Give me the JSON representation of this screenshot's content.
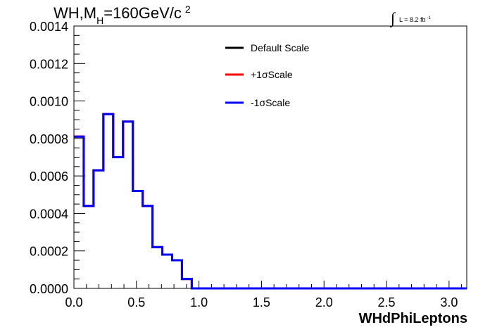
{
  "chart_data": {
    "type": "line",
    "title": {
      "prefix": "WH,M",
      "sub": "H",
      "suffix": "=160GeV/c",
      "sup": "2"
    },
    "lumi": {
      "integral": "∫",
      "text": "L = 8.2 fb",
      "sup": "-1"
    },
    "xlabel": "WHdPhiLeptons",
    "ylabel": "",
    "xlim": [
      0,
      3.1416
    ],
    "ylim": [
      0,
      0.0014
    ],
    "xticks": [
      0,
      0.5,
      1.0,
      1.5,
      2.0,
      2.5,
      3.0
    ],
    "xtick_labels": [
      "0.0",
      "0.5",
      "1.0",
      "1.5",
      "2.0",
      "2.5",
      "3.0"
    ],
    "yticks": [
      0,
      0.0002,
      0.0004,
      0.0006,
      0.0008,
      0.001,
      0.0012,
      0.0014
    ],
    "ytick_labels": [
      "0.0000",
      "0.0002",
      "0.0004",
      "0.0006",
      "0.0008",
      "0.0010",
      "0.0012",
      "0.0014"
    ],
    "bin_edges": [
      0,
      0.0785,
      0.157,
      0.2356,
      0.3142,
      0.3927,
      0.4712,
      0.5498,
      0.6283,
      0.7069,
      0.7854,
      0.8639,
      0.9425,
      1.021,
      1.0996,
      1.1781,
      1.2566,
      1.3352,
      1.4137,
      1.4923,
      1.5708,
      1.6493,
      1.7279,
      1.8064,
      1.885,
      1.9635,
      2.042,
      2.1206,
      2.1991,
      2.2777,
      2.3562,
      2.4347,
      2.5133,
      2.5918,
      2.6704,
      2.7489,
      2.8274,
      2.906,
      2.9845,
      3.0631,
      3.1416
    ],
    "series": [
      {
        "name": "Default Scale",
        "color": "#000000",
        "values": [
          0.00081,
          0.00044,
          0.00063,
          0.00093,
          0.0007,
          0.00089,
          0.00052,
          0.00044,
          0.00022,
          0.00018,
          0.00015,
          5e-05,
          0,
          0,
          0,
          0,
          0,
          0,
          0,
          0,
          0,
          0,
          0,
          0,
          0,
          0,
          0,
          0,
          0,
          0,
          0,
          0,
          0,
          0,
          0,
          0,
          0,
          0,
          0,
          0
        ]
      },
      {
        "name": "+1σScale",
        "color": "#ff0000",
        "values": [
          0.00081,
          0.00044,
          0.00063,
          0.00093,
          0.0007,
          0.00089,
          0.00052,
          0.00044,
          0.00022,
          0.00018,
          0.00015,
          5e-05,
          0,
          0,
          0,
          0,
          0,
          0,
          0,
          0,
          0,
          0,
          0,
          0,
          0,
          0,
          0,
          0,
          0,
          0,
          0,
          0,
          0,
          0,
          0,
          0,
          0,
          0,
          0,
          0
        ]
      },
      {
        "name": "-1σScale",
        "color": "#0000ff",
        "values": [
          0.00081,
          0.00044,
          0.00063,
          0.00093,
          0.0007,
          0.00089,
          0.00052,
          0.00044,
          0.00022,
          0.00018,
          0.00015,
          5e-05,
          0,
          0,
          0,
          0,
          0,
          0,
          0,
          0,
          0,
          0,
          0,
          0,
          0,
          0,
          0,
          0,
          0,
          0,
          0,
          0,
          0,
          0,
          0,
          0,
          0,
          0,
          0,
          0
        ]
      }
    ],
    "grid": false,
    "legend_position": "top-center"
  }
}
